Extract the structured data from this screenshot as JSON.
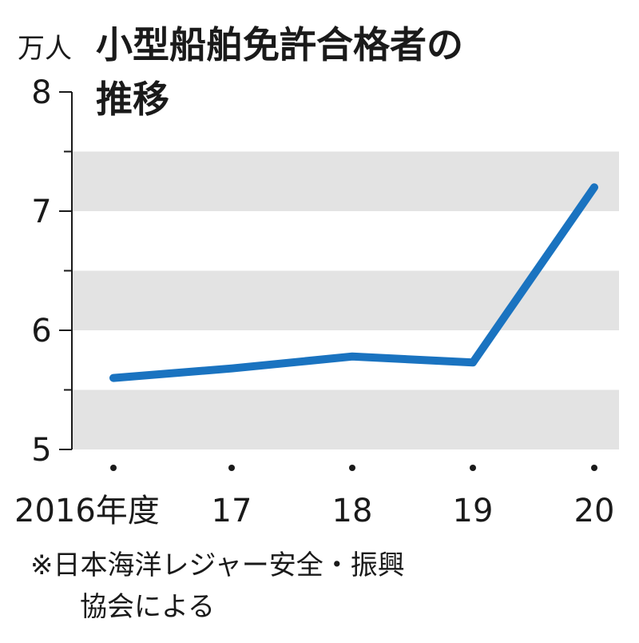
{
  "chart_data": {
    "type": "line",
    "title_line1": "小型船舶免許合格者の",
    "title_line2": "推移",
    "unit": "万人",
    "categories": [
      "2016年度",
      "17",
      "18",
      "19",
      "20"
    ],
    "series": [
      {
        "values": [
          5.6,
          5.68,
          5.78,
          5.73,
          7.2
        ]
      }
    ],
    "ylim": [
      5,
      8
    ],
    "yticks": [
      5,
      6,
      7,
      8
    ],
    "bands": [
      [
        5,
        5.5
      ],
      [
        6,
        6.5
      ],
      [
        7,
        7.5
      ]
    ],
    "colors": {
      "line": "#1a73c0",
      "band": "#e3e3e3",
      "axis": "#1a1a1a"
    },
    "source_note_line1": "※日本海洋レジャー安全・振興",
    "source_note_line2": "協会による"
  }
}
